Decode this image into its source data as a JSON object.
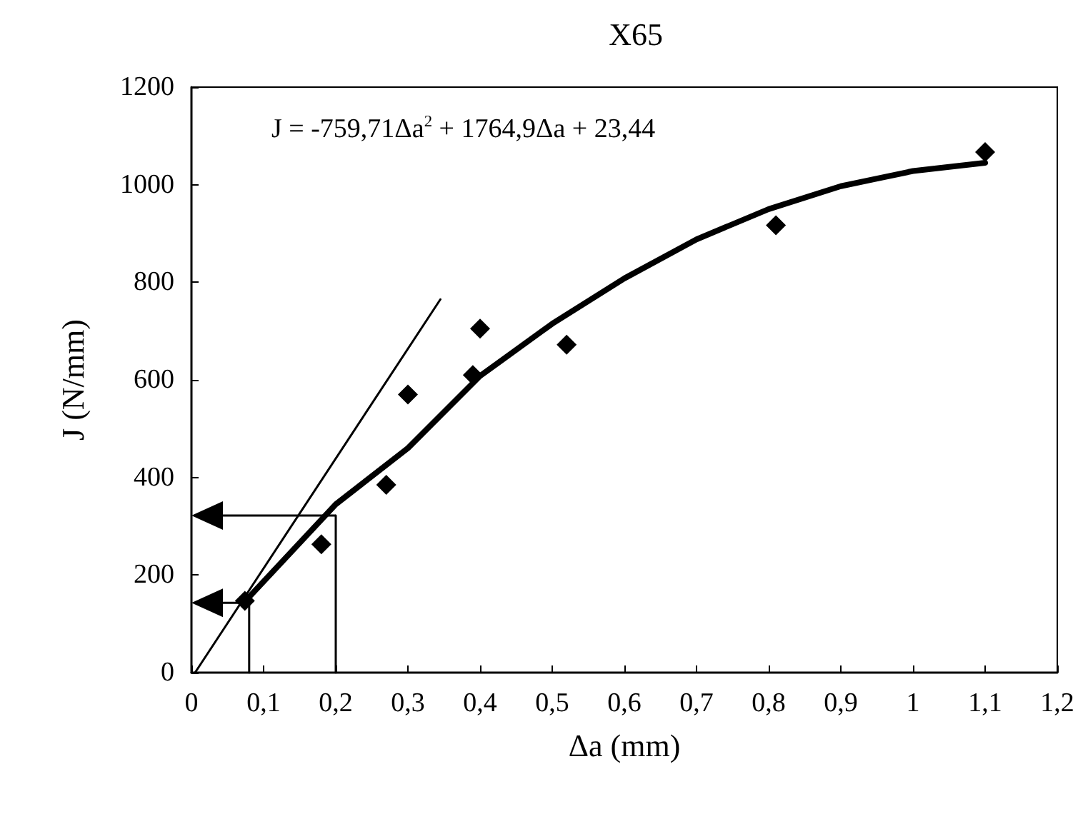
{
  "chart_data": {
    "type": "scatter",
    "title": "X65",
    "xlabel": "Δa (mm)",
    "ylabel": "J (N/mm)",
    "xlim": [
      0,
      1.2
    ],
    "xticks": [
      0,
      {
        "value": 0.1,
        "label": "0,1"
      },
      {
        "value": 0.2,
        "label": "0,2"
      },
      {
        "value": 0.3,
        "label": "0,3"
      },
      {
        "value": 0.4,
        "label": "0,4"
      },
      {
        "value": 0.5,
        "label": "0,5"
      },
      {
        "value": 0.6,
        "label": "0,6"
      },
      {
        "value": 0.7,
        "label": "0,7"
      },
      {
        "value": 0.8,
        "label": "0,8"
      },
      {
        "value": 0.9,
        "label": "0,9"
      },
      1,
      {
        "value": 1.1,
        "label": "1,1"
      },
      {
        "value": 1.2,
        "label": "1,2"
      }
    ],
    "ylim": [
      0,
      1200
    ],
    "yticks": [
      0,
      200,
      400,
      600,
      800,
      1000,
      1200
    ],
    "grid": false,
    "annotations": [
      "J = -759,71Δa$^{2}$ + 1764,9Δa + 23,44"
    ],
    "series": [
      {
        "color": "#000000",
        "marker": "diamond",
        "x": [
          0.074,
          0.18,
          0.27,
          0.3,
          0.39,
          0.4,
          0.52,
          0.81,
          1.1
        ],
        "values": [
          147,
          263,
          385,
          570,
          610,
          705,
          672,
          917,
          1067
        ]
      },
      {
        "type": "line",
        "color": "#000000",
        "marker": "none",
        "line_style": "solid",
        "x": [
          0.08,
          0.2,
          0.3,
          0.4,
          0.5,
          0.6,
          0.7,
          0.8,
          0.9,
          1.0,
          1.1
        ],
        "values": [
          155,
          345,
          460,
          608,
          715,
          808,
          888,
          950,
          997,
          1028,
          1045
        ]
      },
      {
        "type": "line",
        "color": "#000000",
        "marker": "none",
        "line_style": "solid",
        "x": [
          0.005,
          0.345
        ],
        "values": [
          0,
          765
        ]
      },
      {
        "type": "line",
        "color": "#000000",
        "marker": "none",
        "line_style": "solid",
        "x": [
          0.08,
          0.08
        ],
        "values": [
          0,
          143
        ]
      },
      {
        "type": "line",
        "color": "#000000",
        "marker": "none",
        "line_style": "solid",
        "x": [
          0.2,
          0.2
        ],
        "values": [
          0,
          322
        ]
      }
    ]
  }
}
